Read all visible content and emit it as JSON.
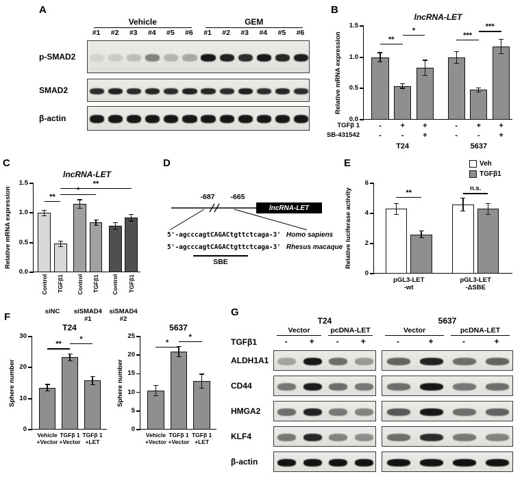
{
  "panel_labels": {
    "A": "A",
    "B": "B",
    "C": "C",
    "D": "D",
    "E": "E",
    "F": "F",
    "G": "G"
  },
  "panel_A": {
    "groups": [
      {
        "label": "Vehicle"
      },
      {
        "label": "GEM"
      }
    ],
    "lanes": [
      "#1",
      "#2",
      "#3",
      "#4",
      "#5",
      "#6",
      "#1",
      "#2",
      "#3",
      "#4",
      "#5",
      "#6"
    ],
    "rows": [
      {
        "label": "p-SMAD2",
        "band_h": 11,
        "bands": [
          0.08,
          0.12,
          0.18,
          0.45,
          0.22,
          0.28,
          0.95,
          0.9,
          0.85,
          0.95,
          0.88,
          0.92
        ]
      },
      {
        "label": "SMAD2",
        "band_h": 9,
        "bands": [
          0.85,
          0.9,
          0.85,
          0.88,
          0.85,
          0.9,
          0.88,
          0.85,
          0.9,
          0.85,
          0.88,
          0.85
        ]
      },
      {
        "label": "β-actin",
        "band_h": 12,
        "bands": [
          0.95,
          0.95,
          0.95,
          0.95,
          0.95,
          0.95,
          0.95,
          0.95,
          0.95,
          0.95,
          0.95,
          0.95
        ]
      }
    ]
  },
  "panel_D": {
    "pos_left": "-687",
    "pos_right": "-665",
    "gene": "lncRNA-LET",
    "sequences": [
      {
        "prefix": "5'-agcccagt",
        "core": "CAGAC",
        "suffix": "tgttctcaga-3'",
        "species": "Homo sapiens"
      },
      {
        "prefix": "5'-agcccagt",
        "core": "CAGAC",
        "suffix": "tgttctcaga-3'",
        "species": "Rhesus macaque"
      }
    ],
    "sbe_label": "SBE"
  },
  "panel_G": {
    "cell_lines": [
      "T24",
      "5637"
    ],
    "conditions": [
      "Vector",
      "pcDNA-LET"
    ],
    "tgf_label": "TGFβ1",
    "tgf_signs": [
      "-",
      "+",
      "-",
      "+",
      "-",
      "+",
      "-",
      "+"
    ],
    "rows": [
      {
        "label": "ALDH1A1",
        "bands": [
          [
            0.3,
            0.95,
            0.55,
            0.35
          ],
          [
            0.6,
            0.9,
            0.55,
            0.6
          ]
        ]
      },
      {
        "label": "CD44",
        "bands": [
          [
            0.5,
            0.92,
            0.55,
            0.5
          ],
          [
            0.55,
            0.95,
            0.5,
            0.55
          ]
        ]
      },
      {
        "label": "HMGA2",
        "bands": [
          [
            0.55,
            0.9,
            0.5,
            0.45
          ],
          [
            0.65,
            0.95,
            0.55,
            0.6
          ]
        ]
      },
      {
        "label": "KLF4",
        "bands": [
          [
            0.5,
            0.88,
            0.45,
            0.4
          ],
          [
            0.55,
            0.85,
            0.5,
            0.45
          ]
        ]
      },
      {
        "label": "β-actin",
        "bands": [
          [
            0.97,
            0.97,
            0.97,
            0.97
          ],
          [
            0.97,
            0.97,
            0.97,
            0.97
          ]
        ]
      }
    ]
  },
  "chart_data": [
    {
      "id": "B",
      "type": "bar",
      "title": "lncRNA-LET",
      "title_italic": true,
      "ylabel": "Relative mRNA expression",
      "ylim": [
        0,
        1.5
      ],
      "yticks": [
        {
          "v": 0,
          "label": "0.0"
        },
        {
          "v": 0.5,
          "label": "0.5"
        },
        {
          "v": 1,
          "label": "1.0"
        },
        {
          "v": 1.5,
          "label": "1.5"
        }
      ],
      "values": [
        1.0,
        0.54,
        0.83,
        1.0,
        0.48,
        1.17
      ],
      "errors": [
        0.08,
        0.04,
        0.13,
        0.1,
        0.04,
        0.12
      ],
      "bar_color": "#8f8f8f",
      "centers": [
        0.11,
        0.26,
        0.41,
        0.62,
        0.77,
        0.92
      ],
      "bar_w_frac": 0.115,
      "sig": [
        {
          "from": 0,
          "to": 1,
          "y": 1.22,
          "label": "**"
        },
        {
          "from": 1,
          "to": 2,
          "y": 1.36,
          "label": "*"
        },
        {
          "from": 3,
          "to": 4,
          "y": 1.28,
          "label": "***"
        },
        {
          "from": 4,
          "to": 5,
          "y": 1.42,
          "label": "***"
        }
      ],
      "sign_rows": [
        {
          "label": "TGFβ 1",
          "values": [
            "-",
            "+",
            "+",
            "-",
            "+",
            "+"
          ]
        },
        {
          "label": "SB-431542",
          "values": [
            "-",
            "-",
            "+",
            "-",
            "-",
            "+"
          ]
        }
      ],
      "group_labels": [
        {
          "text": "T24",
          "from": 0,
          "to": 2
        },
        {
          "text": "5637",
          "from": 3,
          "to": 5
        }
      ],
      "group_fs": 11
    },
    {
      "id": "C",
      "type": "bar",
      "title": "lncRNA-LET",
      "title_italic": true,
      "ylabel": "Relative mRNA expression",
      "ylim": [
        0,
        1.5
      ],
      "yticks": [
        {
          "v": 0,
          "label": "0.0"
        },
        {
          "v": 0.5,
          "label": "0.5"
        },
        {
          "v": 1,
          "label": "1.0"
        },
        {
          "v": 1.5,
          "label": "1.5"
        }
      ],
      "values": [
        1.0,
        0.48,
        1.15,
        0.84,
        0.78,
        0.92
      ],
      "errors": [
        0.05,
        0.05,
        0.08,
        0.05,
        0.06,
        0.06
      ],
      "bar_colors": [
        "#d8d8d8",
        "#d8d8d8",
        "#a0a0a0",
        "#a0a0a0",
        "#4f4f4f",
        "#4f4f4f"
      ],
      "centers": [
        0.1,
        0.25,
        0.43,
        0.58,
        0.76,
        0.91
      ],
      "bar_w_frac": 0.12,
      "sig": [
        {
          "from": 0,
          "to": 1,
          "y": 1.2,
          "label": "**"
        },
        {
          "from": 1,
          "to": 3,
          "y": 1.32,
          "label": "*"
        },
        {
          "from": 1,
          "to": 5,
          "y": 1.42,
          "label": "**"
        }
      ],
      "xticklabels": [
        "Control",
        "TGFβ1",
        "Control",
        "TGFβ1",
        "Control",
        "TGFβ1"
      ],
      "xtick_rotate": true,
      "group_labels": [
        {
          "text": "siNC",
          "from": 0,
          "to": 1
        },
        {
          "text": "siSMAD4\n#1",
          "from": 2,
          "to": 3
        },
        {
          "text": "siSMAD4\n#2",
          "from": 4,
          "to": 5
        }
      ],
      "group_fs": 9.5
    },
    {
      "id": "E",
      "type": "bar",
      "ylabel": "Relative luciferase activity",
      "ylim": [
        0,
        6
      ],
      "yticks": [
        {
          "v": 0,
          "label": "0"
        },
        {
          "v": 2,
          "label": "2"
        },
        {
          "v": 4,
          "label": "4"
        },
        {
          "v": 6,
          "label": "6"
        }
      ],
      "values": [
        4.3,
        2.6,
        4.6,
        4.3
      ],
      "errors": [
        0.4,
        0.25,
        0.45,
        0.4
      ],
      "bar_colors": [
        "#ffffff",
        "#8f8f8f",
        "#ffffff",
        "#8f8f8f"
      ],
      "centers": [
        0.16,
        0.34,
        0.64,
        0.82
      ],
      "bar_w_frac": 0.155,
      "sig": [
        {
          "from": 0,
          "to": 1,
          "y": 5.1,
          "label": "**"
        },
        {
          "from": 2,
          "to": 3,
          "y": 5.35,
          "label": "n.s."
        }
      ],
      "group_labels": [
        {
          "text": "pGL3-LET\n-wt",
          "from": 0,
          "to": 1
        },
        {
          "text": "pGL3-LET\n-ΔSBE",
          "from": 2,
          "to": 3
        }
      ],
      "group_fs": 9.5,
      "legend": [
        {
          "label": "Veh",
          "color": "#ffffff"
        },
        {
          "label": "TGFβ1",
          "color": "#8f8f8f"
        }
      ]
    },
    {
      "id": "F_T24",
      "type": "bar",
      "title": "T24",
      "ylabel": "Sphere number",
      "ylim": [
        0,
        30
      ],
      "yticks": [
        {
          "v": 0,
          "label": "0"
        },
        {
          "v": 10,
          "label": "10"
        },
        {
          "v": 20,
          "label": "20"
        },
        {
          "v": 30,
          "label": "30"
        }
      ],
      "values": [
        13.5,
        23.3,
        15.8
      ],
      "errors": [
        1.2,
        1.2,
        1.4
      ],
      "bar_color": "#8f8f8f",
      "centers": [
        0.2,
        0.5,
        0.8
      ],
      "bar_w_frac": 0.22,
      "ylab_off": -36,
      "sig": [
        {
          "from": 0,
          "to": 1,
          "y": 26.2,
          "label": "**"
        },
        {
          "from": 1,
          "to": 2,
          "y": 27.8,
          "label": "*"
        }
      ],
      "xticklabels": [
        "Vehicle\n+Vector",
        "TGFβ 1\n+Vector",
        "TGFβ 1\n+LET"
      ]
    },
    {
      "id": "F_5637",
      "type": "bar",
      "title": "5637",
      "ylabel": "Sphere number",
      "ylim": [
        0,
        25
      ],
      "yticks": [
        {
          "v": 0,
          "label": "0"
        },
        {
          "v": 5,
          "label": "5"
        },
        {
          "v": 10,
          "label": "10"
        },
        {
          "v": 15,
          "label": "15"
        },
        {
          "v": 20,
          "label": "20"
        },
        {
          "v": 25,
          "label": "25"
        }
      ],
      "values": [
        10.5,
        21.0,
        13.0
      ],
      "errors": [
        1.5,
        1.5,
        2.0
      ],
      "bar_color": "#8f8f8f",
      "centers": [
        0.2,
        0.5,
        0.8
      ],
      "bar_w_frac": 0.22,
      "ylab_off": -36,
      "sig": [
        {
          "from": 0,
          "to": 1,
          "y": 22.3,
          "label": "*"
        },
        {
          "from": 1,
          "to": 2,
          "y": 23.8,
          "label": "*"
        }
      ],
      "xticklabels": [
        "Vehicle\n+Vector",
        "TGFβ 1\n+Vector",
        "TGFβ 1\n+LET"
      ]
    }
  ]
}
